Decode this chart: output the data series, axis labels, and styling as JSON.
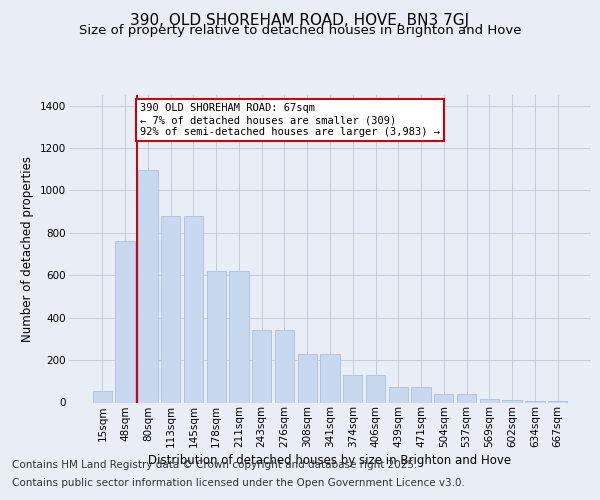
{
  "title": "390, OLD SHOREHAM ROAD, HOVE, BN3 7GJ",
  "subtitle": "Size of property relative to detached houses in Brighton and Hove",
  "xlabel": "Distribution of detached houses by size in Brighton and Hove",
  "ylabel": "Number of detached properties",
  "categories": [
    "15sqm",
    "48sqm",
    "80sqm",
    "113sqm",
    "145sqm",
    "178sqm",
    "211sqm",
    "243sqm",
    "276sqm",
    "308sqm",
    "341sqm",
    "374sqm",
    "406sqm",
    "439sqm",
    "471sqm",
    "504sqm",
    "537sqm",
    "569sqm",
    "602sqm",
    "634sqm",
    "667sqm"
  ],
  "values": [
    55,
    760,
    1095,
    880,
    880,
    620,
    620,
    340,
    340,
    230,
    230,
    130,
    130,
    75,
    75,
    40,
    40,
    18,
    12,
    8,
    8
  ],
  "bar_color": "#c8d8ee",
  "bar_edge_color": "#a8c0e0",
  "vline_x": 1.5,
  "vline_color": "#cc0000",
  "annotation_text": "390 OLD SHOREHAM ROAD: 67sqm\n← 7% of detached houses are smaller (309)\n92% of semi-detached houses are larger (3,983) →",
  "ylim": [
    0,
    1450
  ],
  "yticks": [
    0,
    200,
    400,
    600,
    800,
    1000,
    1200,
    1400
  ],
  "bg_color": "#e8edf6",
  "grid_color": "#c0c8d8",
  "footer1": "Contains HM Land Registry data © Crown copyright and database right 2025.",
  "footer2": "Contains public sector information licensed under the Open Government Licence v3.0.",
  "title_fontsize": 11,
  "subtitle_fontsize": 9.5,
  "ylabel_fontsize": 8.5,
  "xlabel_fontsize": 8.5,
  "tick_fontsize": 7.5,
  "footer_fontsize": 7.5,
  "ann_fontsize": 7.5
}
